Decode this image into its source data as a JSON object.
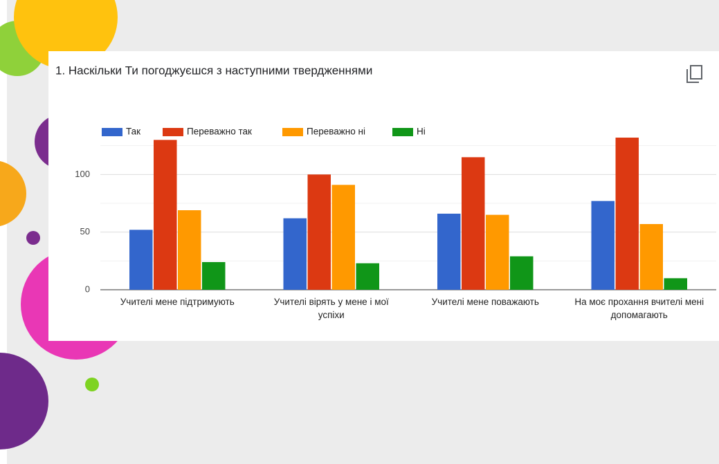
{
  "chart_data": {
    "type": "bar",
    "title": "1. Наскільки Ти погоджуєшся з наступними твердженнями",
    "categories": [
      "Учителі мене підтримують",
      "Учителі вірять у мене і мої успіхи",
      "Учителі мене поважають",
      "На моє прохання вчителі мені допомагають"
    ],
    "series": [
      {
        "name": "Так",
        "color": "#3366cc",
        "values": [
          52,
          62,
          66,
          77
        ]
      },
      {
        "name": "Переважно так",
        "color": "#dc3912",
        "values": [
          130,
          100,
          115,
          132
        ]
      },
      {
        "name": "Переважно ні",
        "color": "#ff9900",
        "values": [
          69,
          91,
          65,
          57
        ]
      },
      {
        "name": "Ні",
        "color": "#109618",
        "values": [
          24,
          23,
          29,
          10
        ]
      }
    ],
    "ylim": [
      0,
      135
    ],
    "yticks": [
      0,
      50,
      100
    ],
    "minor_yticks": [
      25,
      75,
      125
    ],
    "grid": true,
    "legend": "top"
  }
}
